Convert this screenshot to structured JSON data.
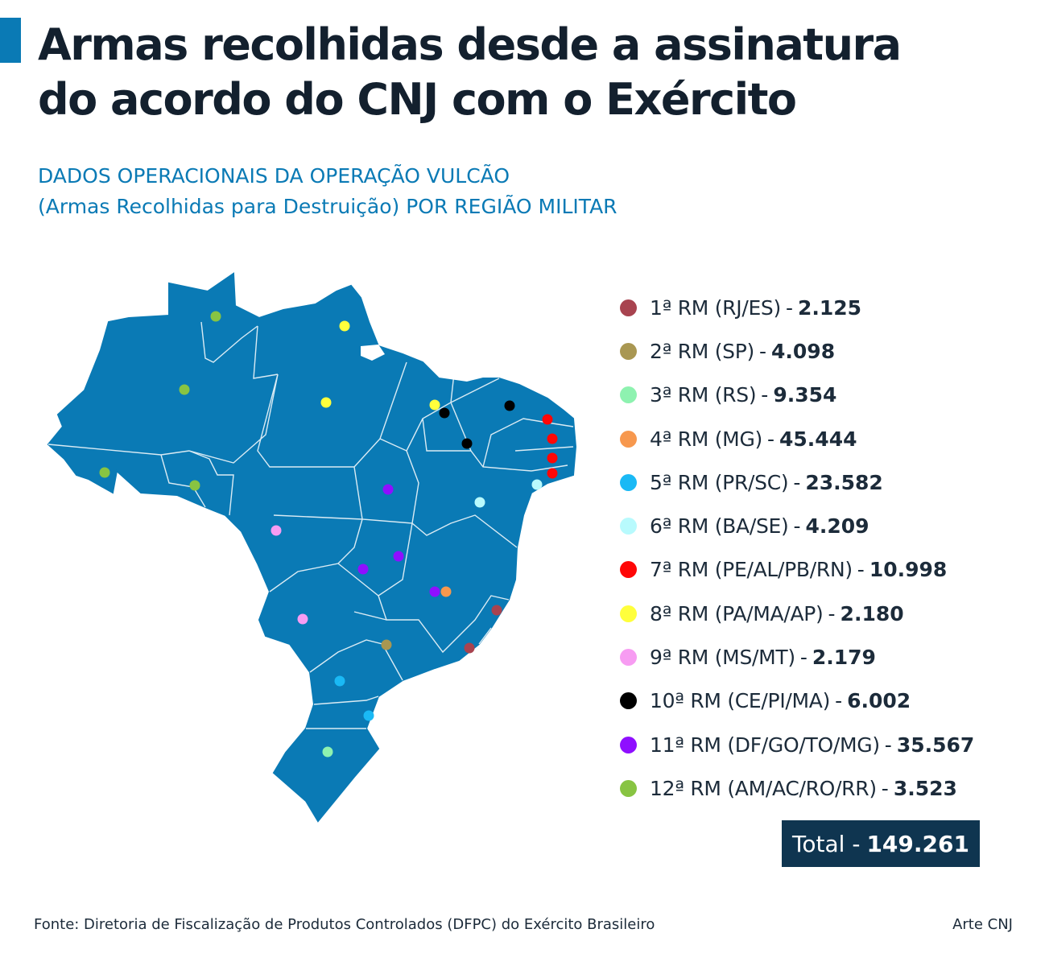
{
  "title_lines": [
    "Armas recolhidas desde a assinatura",
    "do acordo do CNJ com o Exército"
  ],
  "subtitle_lines": [
    "DADOS OPERACIONAIS DA OPERAÇÃO VULCÃO",
    "(Armas Recolhidas para Destruição) POR REGIÃO MILITAR"
  ],
  "colors": {
    "accent": "#0a7ab5",
    "map_fill": "#0a7ab5",
    "map_border": "#ffffff",
    "total_bg": "#0f3550"
  },
  "legend": [
    {
      "label": "1ª RM (RJ/ES)",
      "value": "2.125",
      "color": "#a8434f"
    },
    {
      "label": "2ª RM (SP)",
      "value": "4.098",
      "color": "#a99752"
    },
    {
      "label": "3ª RM (RS)",
      "value": "9.354",
      "color": "#8ef2b0"
    },
    {
      "label": "4ª RM (MG)",
      "value": "45.444",
      "color": "#f7984e"
    },
    {
      "label": "5ª RM (PR/SC)",
      "value": "23.582",
      "color": "#1ab9f5"
    },
    {
      "label": "6ª RM (BA/SE)",
      "value": "4.209",
      "color": "#b8fafd"
    },
    {
      "label": "7ª RM (PE/AL/PB/RN)",
      "value": "10.998",
      "color": "#ff0707"
    },
    {
      "label": "8ª RM (PA/MA/AP)",
      "value": "2.180",
      "color": "#ffff3c"
    },
    {
      "label": "9ª RM (MS/MT)",
      "value": "2.179",
      "color": "#f79cf2"
    },
    {
      "label": "10ª RM (CE/PI/MA)",
      "value": "6.002",
      "color": "#000000"
    },
    {
      "label": "11ª RM (DF/GO/TO/MG)",
      "value": "35.567",
      "color": "#8f0fff"
    },
    {
      "label": "12ª RM (AM/AC/RO/RR)",
      "value": "3.523",
      "color": "#88c442"
    }
  ],
  "separator": "-",
  "total": {
    "label": "Total -",
    "value": "149.261"
  },
  "source": "Fonte: Diretoria de Fiscalização de Produtos Controlados (DFPC) do Exército Brasileiro",
  "credit": "Arte CNJ"
}
